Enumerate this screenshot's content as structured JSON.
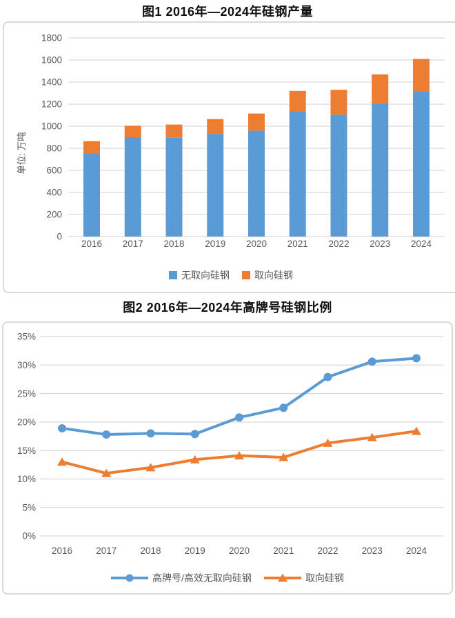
{
  "colors": {
    "blue": "#5B9BD5",
    "orange": "#ED7D31",
    "grid": "#D9D9D9",
    "axis_text": "#595959",
    "panel_border": "#D9D9D9",
    "title_text": "#111111"
  },
  "chart_data": [
    {
      "type": "bar",
      "stacked": true,
      "title": "图1 2016年—2024年硅钢产量",
      "ylabel": "单位: 万吨",
      "categories": [
        "2016",
        "2017",
        "2018",
        "2019",
        "2020",
        "2021",
        "2022",
        "2023",
        "2024"
      ],
      "series": [
        {
          "name": "无取向硅钢",
          "color": "#5B9BD5",
          "marker": "square",
          "values": [
            750,
            900,
            895,
            930,
            960,
            1135,
            1105,
            1200,
            1315
          ]
        },
        {
          "name": "取向硅钢",
          "color": "#ED7D31",
          "marker": "square",
          "values": [
            115,
            105,
            120,
            135,
            155,
            185,
            225,
            270,
            295
          ]
        }
      ],
      "ylim": [
        0,
        1800
      ],
      "ytick_step": 200,
      "ytick_labels": [
        "0",
        "200",
        "400",
        "600",
        "800",
        "1000",
        "1200",
        "1400",
        "1600",
        "1800"
      ],
      "grid": true,
      "legend_position": "bottom"
    },
    {
      "type": "line",
      "title": "图2 2016年—2024年高牌号硅钢比例",
      "ylabel": "",
      "categories": [
        "2016",
        "2017",
        "2018",
        "2019",
        "2020",
        "2021",
        "2022",
        "2023",
        "2024"
      ],
      "series": [
        {
          "name": "高牌号/高效无取向硅钢",
          "color": "#5B9BD5",
          "marker": "circle",
          "values": [
            18.9,
            17.8,
            18.0,
            17.9,
            20.8,
            22.5,
            27.9,
            30.6,
            31.2
          ]
        },
        {
          "name": "取向硅钢",
          "color": "#ED7D31",
          "marker": "triangle",
          "values": [
            13.0,
            11.0,
            12.0,
            13.4,
            14.1,
            13.8,
            16.3,
            17.3,
            18.4
          ]
        }
      ],
      "ylim": [
        0,
        35
      ],
      "ytick_step": 5,
      "ytick_format": "percent",
      "ytick_labels": [
        "0%",
        "5%",
        "10%",
        "15%",
        "20%",
        "25%",
        "30%",
        "35%"
      ],
      "grid": true,
      "legend_position": "bottom"
    }
  ]
}
